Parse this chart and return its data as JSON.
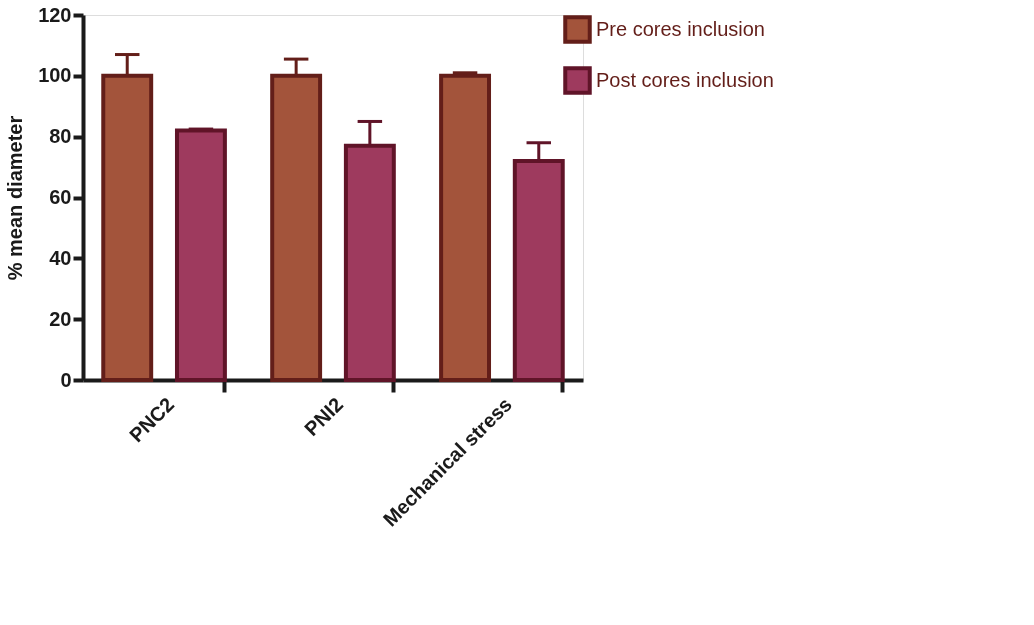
{
  "chart_data": {
    "type": "bar",
    "ylabel": "% mean diameter",
    "categories": [
      "PNC2",
      "PNI2",
      "Mechanical stress"
    ],
    "series": [
      {
        "name": "Pre cores inclusion",
        "color": "#a3543b",
        "values": [
          100,
          100,
          100
        ],
        "errors": [
          [
            100,
            107
          ],
          [
            100,
            105.5
          ],
          [
            100,
            101
          ]
        ]
      },
      {
        "name": "Post cores inclusion",
        "color": "#9e3a5e",
        "values": [
          82,
          77,
          72
        ],
        "errors": [
          [
            82,
            82.5
          ],
          [
            77,
            85
          ],
          [
            72,
            78
          ]
        ]
      }
    ],
    "ylim": [
      0,
      120
    ],
    "yticks": [
      0,
      20,
      40,
      60,
      80,
      100,
      120
    ],
    "grid": false,
    "legend": "top right"
  }
}
